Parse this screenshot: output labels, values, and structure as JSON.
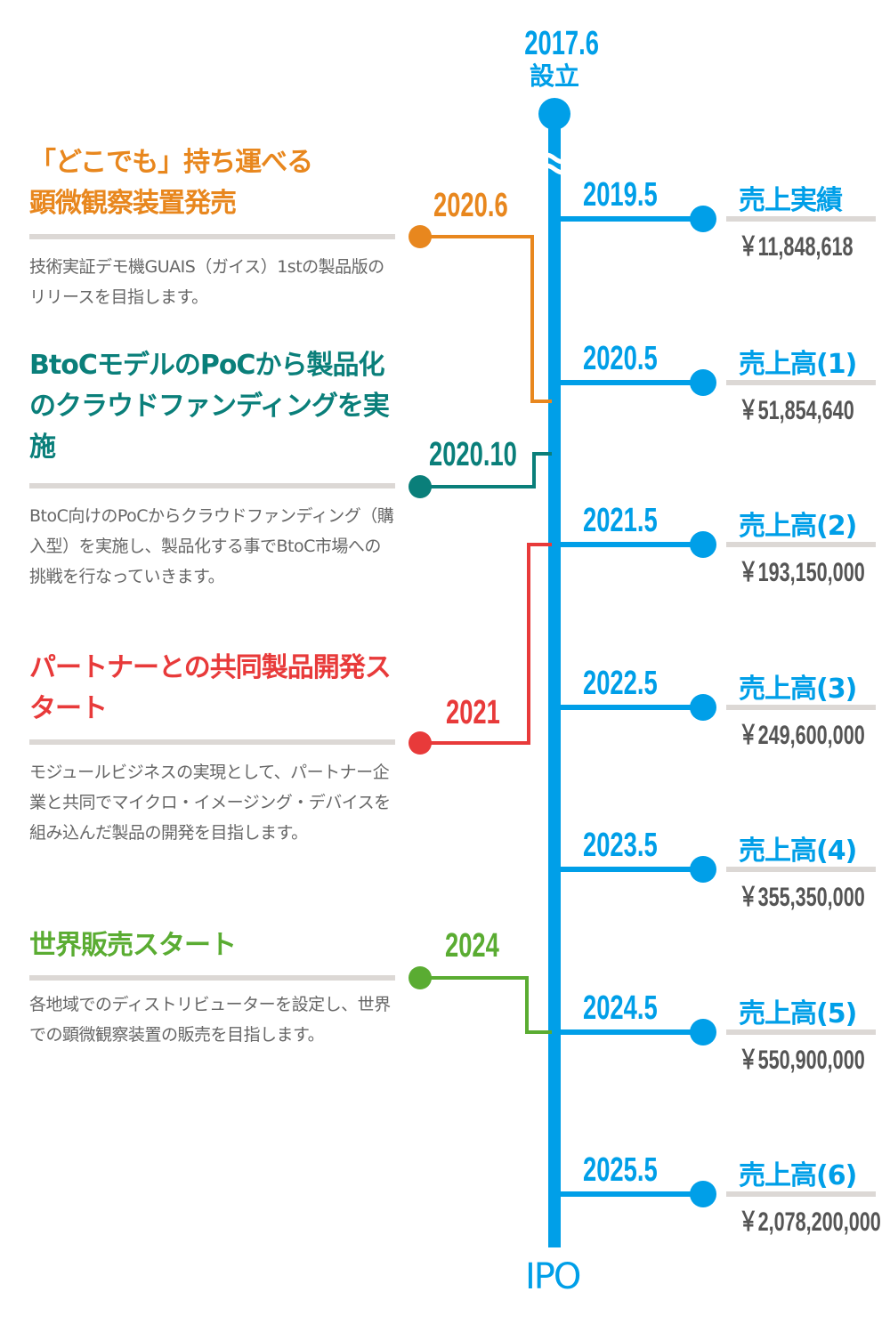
{
  "colors": {
    "main": "#009fe8",
    "orange": "#e8871e",
    "teal": "#0a7f7a",
    "red": "#e83a3a",
    "green": "#5aac32",
    "bar": "#dcd8d5",
    "text": "#666666"
  },
  "start": {
    "date": "2017.6",
    "label": "設立"
  },
  "end": {
    "label": "IPO"
  },
  "left_events": [
    {
      "date": "2020.6",
      "title": "「どこでも」持ち運べる\n顕微観察装置発売",
      "description": "技術実証デモ機GUAIS（ガイス）1stの製品版のリリースを目指します。",
      "color": "#e8871e"
    },
    {
      "date": "2020.10",
      "title": "BtoCモデルのPoCから製品化のクラウドファンディングを実施",
      "description": "BtoC向けのPoCからクラウドファンディング（購入型）を実施し、製品化する事でBtoC市場への挑戦を行なっていきます。",
      "color": "#0a7f7a"
    },
    {
      "date": "2021",
      "title": "パートナーとの共同製品開発スタート",
      "description": "モジュールビジネスの実現として、パートナー企業と共同でマイクロ・イメージング・デバイスを組み込んだ製品の開発を目指します。",
      "color": "#e83a3a"
    },
    {
      "date": "2024",
      "title": "世界販売スタート",
      "description": "各地域でのディストリビューターを設定し、世界での顕微観察装置の販売を目指します。",
      "color": "#5aac32"
    }
  ],
  "sales": [
    {
      "date": "2019.5",
      "label": "売上実績",
      "amount": "￥11,848,618"
    },
    {
      "date": "2020.5",
      "label": "売上高(1)",
      "amount": "￥51,854,640"
    },
    {
      "date": "2021.5",
      "label": "売上高(2)",
      "amount": "￥193,150,000"
    },
    {
      "date": "2022.5",
      "label": "売上高(3)",
      "amount": "￥249,600,000"
    },
    {
      "date": "2023.5",
      "label": "売上高(4)",
      "amount": "￥355,350,000"
    },
    {
      "date": "2024.5",
      "label": "売上高(5)",
      "amount": "￥550,900,000"
    },
    {
      "date": "2025.5",
      "label": "売上高(6)",
      "amount": "￥2,078,200,000"
    }
  ]
}
